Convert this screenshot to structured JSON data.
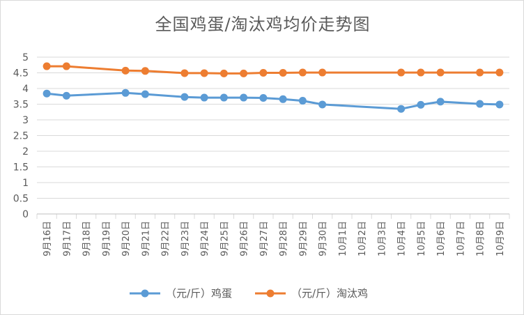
{
  "chart_data": {
    "type": "line",
    "title": "全国鸡蛋/淘汰鸡均价走势图",
    "categories": [
      "9月16日",
      "9月17日",
      "9月18日",
      "9月19日",
      "9月20日",
      "9月21日",
      "9月22日",
      "9月23日",
      "9月24日",
      "9月25日",
      "9月26日",
      "9月27日",
      "9月28日",
      "9月29日",
      "9月30日",
      "10月1日",
      "10月2日",
      "10月3日",
      "10月4日",
      "10月5日",
      "10月6日",
      "10月7日",
      "10月8日",
      "10月9日"
    ],
    "y_ticks": [
      "0",
      "0.5",
      "1",
      "1.5",
      "2",
      "2.5",
      "3",
      "3.5",
      "4",
      "4.5",
      "5"
    ],
    "ylim": [
      0,
      5
    ],
    "grid": true,
    "legend_position": "bottom",
    "series": [
      {
        "name": "（元/斤）鸡蛋",
        "color": "#5b9bd5",
        "values": [
          3.84,
          3.77,
          null,
          null,
          3.86,
          3.82,
          null,
          3.73,
          3.71,
          3.71,
          3.71,
          3.7,
          3.66,
          3.61,
          3.49,
          null,
          null,
          null,
          3.35,
          3.48,
          3.58,
          null,
          3.51,
          3.49
        ]
      },
      {
        "name": "（元/斤）淘汰鸡",
        "color": "#ed7d31",
        "values": [
          4.71,
          4.71,
          null,
          null,
          4.57,
          4.56,
          null,
          4.49,
          4.49,
          4.48,
          4.48,
          4.5,
          4.5,
          4.51,
          4.51,
          null,
          null,
          null,
          4.51,
          4.51,
          4.51,
          null,
          4.51,
          4.51
        ]
      }
    ]
  }
}
